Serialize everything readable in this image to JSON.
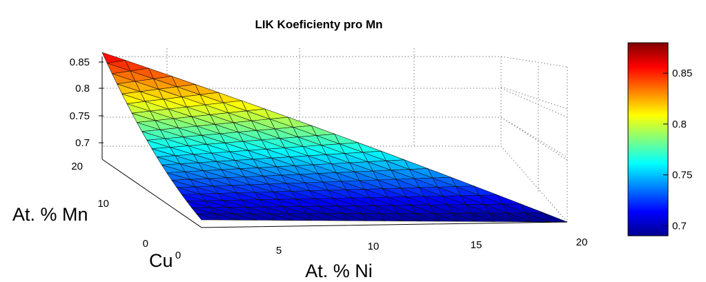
{
  "chart_data": {
    "type": "surface",
    "title": "LIK Koeficienty pro Mn",
    "xlabel": "At. % Ni",
    "ylabel": "At. % Mn",
    "corner_label": "Cu",
    "zlim": [
      0.69,
      0.88
    ],
    "x_ticks": [
      "0",
      "5",
      "10",
      "15",
      "20"
    ],
    "y_ticks": [
      "0",
      "10",
      "20"
    ],
    "z_ticks": [
      "0.7",
      "0.75",
      "0.8",
      "0.85"
    ],
    "colorbar": {
      "range": [
        0.69,
        0.88
      ],
      "ticks": [
        "0.7",
        "0.75",
        "0.8",
        "0.85"
      ],
      "colormap": "jet"
    },
    "grid": true,
    "domain": "ternary simplex: Ni + Mn <= 20 at.%, remainder Cu",
    "sample_values": [
      {
        "ni": 0,
        "mn": 20,
        "value": 0.86
      },
      {
        "ni": 0,
        "mn": 0,
        "value": 0.7
      },
      {
        "ni": 20,
        "mn": 0,
        "value": 0.69
      },
      {
        "ni": 5,
        "mn": 15,
        "value": 0.82
      },
      {
        "ni": 10,
        "mn": 10,
        "value": 0.78
      },
      {
        "ni": 15,
        "mn": 5,
        "value": 0.72
      }
    ]
  }
}
